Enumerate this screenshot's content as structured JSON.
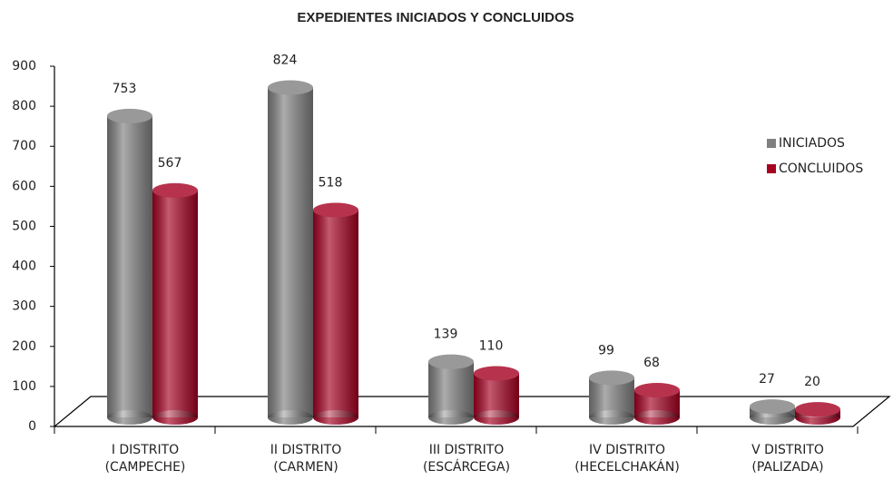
{
  "chart_data": {
    "type": "bar3d",
    "title": "EXPEDIENTES INICIADOS Y CONCLUIDOS",
    "categories": [
      [
        "I DISTRITO",
        "(CAMPECHE)"
      ],
      [
        "II DISTRITO",
        "(CARMEN)"
      ],
      [
        "III DISTRITO",
        "(ESCÁRCEGA)"
      ],
      [
        "IV DISTRITO",
        "(HECELCHAKÁN)"
      ],
      [
        "V DISTRITO",
        "(PALIZADA)"
      ]
    ],
    "series": [
      {
        "name": "INICIADOS",
        "color": "#808080",
        "values": [
          753,
          824,
          139,
          99,
          27
        ]
      },
      {
        "name": "CONCLUIDOS",
        "color": "#a50021",
        "values": [
          567,
          518,
          110,
          68,
          20
        ]
      }
    ],
    "ylim": [
      0,
      900
    ],
    "yticks": [
      0,
      100,
      200,
      300,
      400,
      500,
      600,
      700,
      800,
      900
    ],
    "legend": "right"
  }
}
